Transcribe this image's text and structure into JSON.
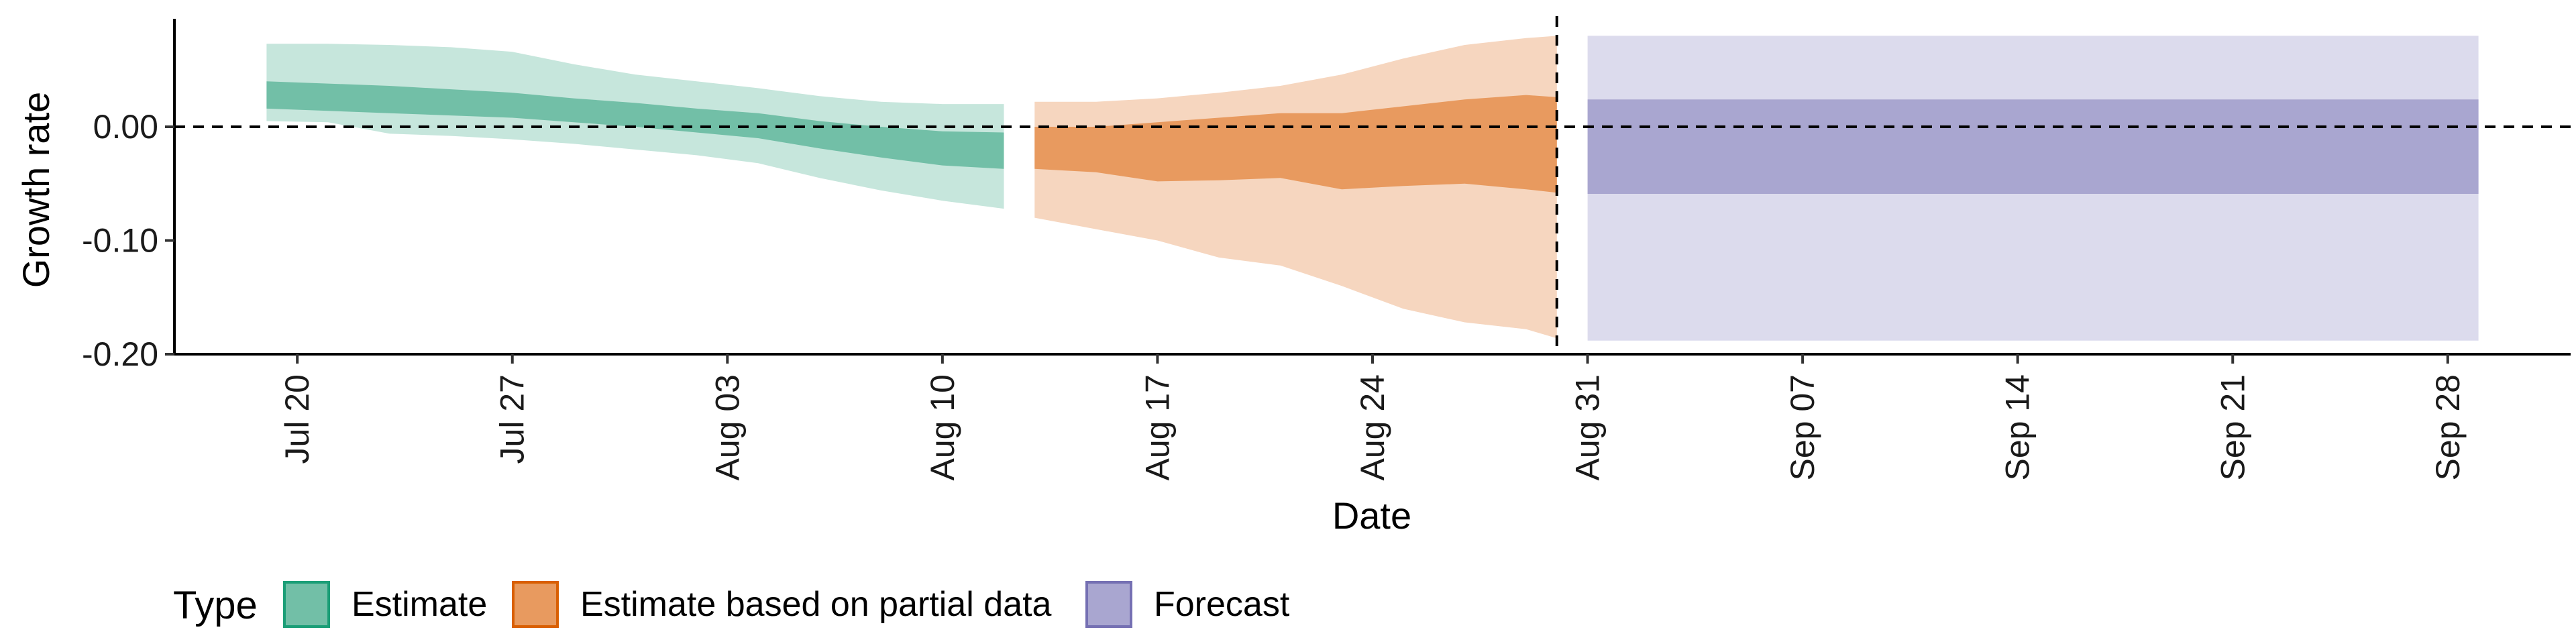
{
  "chart_data": {
    "type": "area",
    "title": "",
    "xlabel": "Date",
    "ylabel": "Growth rate",
    "x_range": [
      "2020-07-16",
      "2020-10-02"
    ],
    "ylim": [
      -0.2,
      0.095
    ],
    "y_ticks": [
      {
        "value": 0.0,
        "label": "0.00"
      },
      {
        "value": -0.1,
        "label": "-0.10"
      },
      {
        "value": -0.2,
        "label": "-0.20"
      }
    ],
    "x_ticks": [
      {
        "date": "2020-07-20",
        "label": "Jul 20"
      },
      {
        "date": "2020-07-27",
        "label": "Jul 27"
      },
      {
        "date": "2020-08-03",
        "label": "Aug 03"
      },
      {
        "date": "2020-08-10",
        "label": "Aug 10"
      },
      {
        "date": "2020-08-17",
        "label": "Aug 17"
      },
      {
        "date": "2020-08-24",
        "label": "Aug 24"
      },
      {
        "date": "2020-08-31",
        "label": "Aug 31"
      },
      {
        "date": "2020-09-07",
        "label": "Sep 07"
      },
      {
        "date": "2020-09-14",
        "label": "Sep 14"
      },
      {
        "date": "2020-09-21",
        "label": "Sep 21"
      },
      {
        "date": "2020-09-28",
        "label": "Sep 28"
      }
    ],
    "reference_lines": {
      "horizontal_y": 0.0,
      "vertical_date": "2020-08-30"
    },
    "grid": false,
    "legend": {
      "title": "Type",
      "placement": "bottom-left",
      "entries": [
        {
          "label": "Estimate",
          "fill": "#72bfa7",
          "stroke": "#1b9e77"
        },
        {
          "label": "Estimate based on partial data",
          "fill": "#e89a5f",
          "stroke": "#d95f02"
        },
        {
          "label": "Forecast",
          "fill": "#a9a6d0",
          "stroke": "#7570b3"
        }
      ]
    },
    "series": [
      {
        "type_index": 0,
        "inner_fill": "#72bfa7",
        "outer_fill": "#c6e6dc",
        "points": [
          {
            "date": "2020-07-19",
            "outer_low": 0.005,
            "outer_high": 0.073,
            "inner_low": 0.016,
            "inner_high": 0.04
          },
          {
            "date": "2020-07-21",
            "outer_low": 0.004,
            "outer_high": 0.073,
            "inner_low": 0.014,
            "inner_high": 0.038
          },
          {
            "date": "2020-07-23",
            "outer_low": -0.006,
            "outer_high": 0.072,
            "inner_low": 0.012,
            "inner_high": 0.036
          },
          {
            "date": "2020-07-25",
            "outer_low": -0.008,
            "outer_high": 0.07,
            "inner_low": 0.01,
            "inner_high": 0.033
          },
          {
            "date": "2020-07-27",
            "outer_low": -0.011,
            "outer_high": 0.066,
            "inner_low": 0.008,
            "inner_high": 0.03
          },
          {
            "date": "2020-07-29",
            "outer_low": -0.015,
            "outer_high": 0.055,
            "inner_low": 0.004,
            "inner_high": 0.025
          },
          {
            "date": "2020-07-31",
            "outer_low": -0.02,
            "outer_high": 0.046,
            "inner_low": 0.0,
            "inner_high": 0.021
          },
          {
            "date": "2020-08-02",
            "outer_low": -0.025,
            "outer_high": 0.04,
            "inner_low": -0.005,
            "inner_high": 0.016
          },
          {
            "date": "2020-08-04",
            "outer_low": -0.032,
            "outer_high": 0.034,
            "inner_low": -0.01,
            "inner_high": 0.012
          },
          {
            "date": "2020-08-06",
            "outer_low": -0.045,
            "outer_high": 0.027,
            "inner_low": -0.019,
            "inner_high": 0.005
          },
          {
            "date": "2020-08-08",
            "outer_low": -0.056,
            "outer_high": 0.022,
            "inner_low": -0.027,
            "inner_high": 0.0
          },
          {
            "date": "2020-08-10",
            "outer_low": -0.065,
            "outer_high": 0.02,
            "inner_low": -0.034,
            "inner_high": -0.004
          },
          {
            "date": "2020-08-12",
            "outer_low": -0.072,
            "outer_high": 0.02,
            "inner_low": -0.037,
            "inner_high": -0.005
          }
        ]
      },
      {
        "type_index": 1,
        "inner_fill": "#e89a5f",
        "outer_fill": "#f6d6bf",
        "points": [
          {
            "date": "2020-08-13",
            "outer_low": -0.08,
            "outer_high": 0.022,
            "inner_low": -0.037,
            "inner_high": 0.0
          },
          {
            "date": "2020-08-15",
            "outer_low": -0.09,
            "outer_high": 0.022,
            "inner_low": -0.04,
            "inner_high": 0.0
          },
          {
            "date": "2020-08-17",
            "outer_low": -0.1,
            "outer_high": 0.025,
            "inner_low": -0.048,
            "inner_high": 0.004
          },
          {
            "date": "2020-08-19",
            "outer_low": -0.115,
            "outer_high": 0.03,
            "inner_low": -0.047,
            "inner_high": 0.008
          },
          {
            "date": "2020-08-21",
            "outer_low": -0.122,
            "outer_high": 0.036,
            "inner_low": -0.045,
            "inner_high": 0.012
          },
          {
            "date": "2020-08-23",
            "outer_low": -0.14,
            "outer_high": 0.046,
            "inner_low": -0.055,
            "inner_high": 0.012
          },
          {
            "date": "2020-08-25",
            "outer_low": -0.16,
            "outer_high": 0.06,
            "inner_low": -0.052,
            "inner_high": 0.018
          },
          {
            "date": "2020-08-27",
            "outer_low": -0.172,
            "outer_high": 0.072,
            "inner_low": -0.05,
            "inner_high": 0.024
          },
          {
            "date": "2020-08-29",
            "outer_low": -0.178,
            "outer_high": 0.078,
            "inner_low": -0.055,
            "inner_high": 0.028
          },
          {
            "date": "2020-08-30",
            "outer_low": -0.186,
            "outer_high": 0.08,
            "inner_low": -0.058,
            "inner_high": 0.026
          }
        ]
      },
      {
        "type_index": 2,
        "inner_fill": "#a9a6d0",
        "outer_fill": "#dcdbed",
        "points": [
          {
            "date": "2020-08-31",
            "outer_low": -0.188,
            "outer_high": 0.08,
            "inner_low": -0.059,
            "inner_high": 0.024
          },
          {
            "date": "2020-09-29",
            "outer_low": -0.188,
            "outer_high": 0.08,
            "inner_low": -0.059,
            "inner_high": 0.024
          }
        ]
      }
    ]
  }
}
